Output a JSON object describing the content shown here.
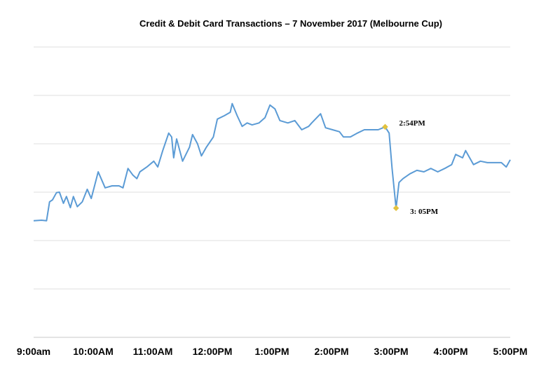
{
  "chart_data": {
    "type": "line",
    "title": "Credit & Debit Card Transactions – 7 November 2017 (Melbourne Cup)",
    "xlabel": "",
    "ylabel": "",
    "x_ticks": [
      "9:00am",
      "10:00AM",
      "11:00AM",
      "12:00PM",
      "1:00PM",
      "2:00PM",
      "3:00PM",
      "4:00PM",
      "5:00PM"
    ],
    "xlim": [
      "09:00",
      "17:00"
    ],
    "ylim": [
      0,
      6
    ],
    "y_tick_labels_shown": false,
    "grid": true,
    "line_color": "#5b9bd5",
    "marker_color": "#e2c23e",
    "series": [
      {
        "x": [
          "09:00",
          "09:08",
          "09:13",
          "09:16",
          "09:19",
          "09:23",
          "09:26",
          "09:30",
          "09:33",
          "09:37",
          "09:40",
          "09:44",
          "09:49",
          "09:54",
          "09:58",
          "10:05",
          "10:08",
          "10:12",
          "10:19",
          "10:26",
          "10:30",
          "10:35",
          "10:40",
          "10:44",
          "10:47",
          "10:54",
          "11:01",
          "11:05",
          "11:10",
          "11:16",
          "11:19",
          "11:21",
          "11:24",
          "11:30",
          "11:37",
          "11:40",
          "11:45",
          "11:49",
          "11:54",
          "12:01",
          "12:05",
          "12:12",
          "12:18",
          "12:20",
          "12:25",
          "12:30",
          "12:35",
          "12:40",
          "12:47",
          "12:53",
          "12:58",
          "13:03",
          "13:08",
          "13:16",
          "13:23",
          "13:30",
          "13:37",
          "13:40",
          "13:49",
          "13:54",
          "14:01",
          "14:08",
          "14:12",
          "14:19",
          "14:26",
          "14:33",
          "14:40",
          "14:47",
          "14:54",
          "14:58",
          "15:01",
          "15:05",
          "15:08",
          "15:12",
          "15:19",
          "15:26",
          "15:33",
          "15:40",
          "15:47",
          "15:54",
          "16:01",
          "16:05",
          "16:12",
          "16:15",
          "16:23",
          "16:30",
          "16:37",
          "16:44",
          "16:51",
          "16:56",
          "17:00"
        ],
        "y": [
          2.41,
          2.42,
          2.41,
          2.8,
          2.84,
          2.99,
          3.0,
          2.77,
          2.91,
          2.68,
          2.91,
          2.7,
          2.8,
          3.06,
          2.87,
          3.42,
          3.28,
          3.09,
          3.13,
          3.13,
          3.09,
          3.49,
          3.35,
          3.28,
          3.42,
          3.52,
          3.64,
          3.52,
          3.86,
          4.22,
          4.14,
          3.71,
          4.1,
          3.64,
          3.93,
          4.19,
          4.0,
          3.75,
          3.93,
          4.14,
          4.51,
          4.58,
          4.65,
          4.83,
          4.58,
          4.36,
          4.43,
          4.39,
          4.43,
          4.54,
          4.8,
          4.72,
          4.48,
          4.43,
          4.48,
          4.29,
          4.36,
          4.43,
          4.62,
          4.33,
          4.29,
          4.25,
          4.14,
          4.14,
          4.22,
          4.29,
          4.29,
          4.29,
          4.35,
          4.22,
          3.49,
          2.67,
          3.2,
          3.28,
          3.38,
          3.45,
          3.42,
          3.49,
          3.42,
          3.49,
          3.57,
          3.78,
          3.71,
          3.86,
          3.57,
          3.64,
          3.61,
          3.61,
          3.61,
          3.52,
          3.67
        ]
      }
    ],
    "annotations": [
      {
        "x": "14:54",
        "y": 4.35,
        "label": "2:54PM"
      },
      {
        "x": "15:05",
        "y": 2.67,
        "label": "3: 05PM"
      }
    ]
  }
}
